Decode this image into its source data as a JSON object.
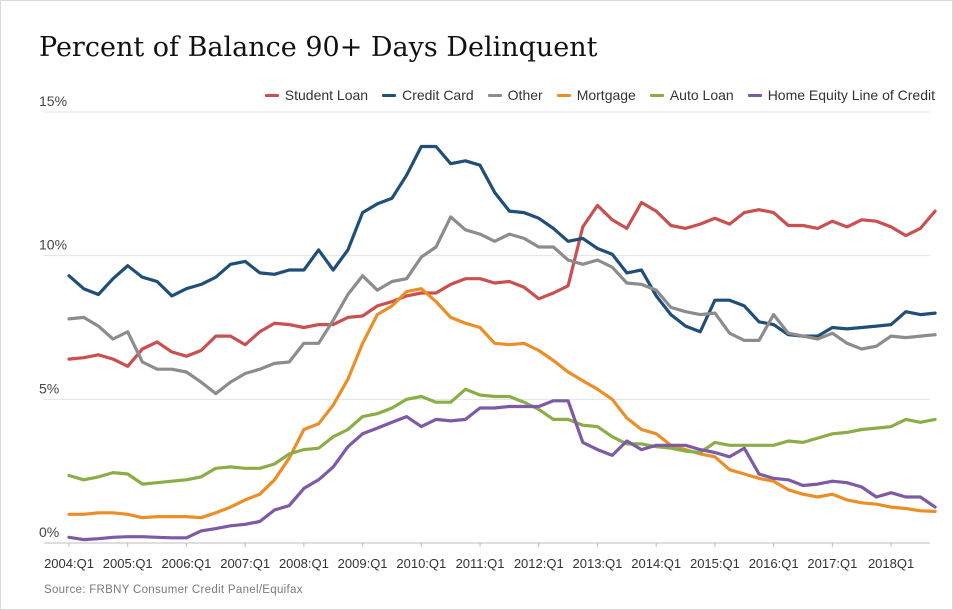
{
  "title": "Percent of Balance 90+ Days Delinquent",
  "source": "Source: FRBNY Consumer Credit Panel/Equifax",
  "chart_data": {
    "type": "line",
    "title": "Percent of Balance 90+ Days Delinquent",
    "ylim": [
      0,
      15
    ],
    "yticks": [
      0,
      5,
      10,
      15
    ],
    "ytick_labels": [
      "0%",
      "5%",
      "10%",
      "15%"
    ],
    "x_start": "2004:Q1",
    "x_tick_labels": [
      "2004:Q1",
      "2005:Q1",
      "2006:Q1",
      "2007:Q1",
      "2008:Q1",
      "2009:Q1",
      "2010:Q1",
      "2011:Q1",
      "2012:Q1",
      "2013:Q1",
      "2014:Q1",
      "2015:Q1",
      "2016:Q1",
      "2017:Q1",
      "2018Q1"
    ],
    "grid": true,
    "legend_position": "top-right",
    "series": [
      {
        "name": "Student Loan",
        "color": "#c9504f",
        "values": [
          6.4,
          6.45,
          6.55,
          6.4,
          6.15,
          6.75,
          7.0,
          6.65,
          6.5,
          6.7,
          7.2,
          7.2,
          6.9,
          7.35,
          7.65,
          7.6,
          7.5,
          7.6,
          7.6,
          7.85,
          7.9,
          8.25,
          8.4,
          8.6,
          8.7,
          8.7,
          9.0,
          9.2,
          9.2,
          9.05,
          9.1,
          8.9,
          8.5,
          8.7,
          8.95,
          11.0,
          11.75,
          11.25,
          10.95,
          11.85,
          11.55,
          11.05,
          10.95,
          11.1,
          11.3,
          11.1,
          11.5,
          11.6,
          11.5,
          11.05,
          11.05,
          10.95,
          11.2,
          11.0,
          11.25,
          11.2,
          11.0,
          10.7,
          10.95,
          11.55
        ]
      },
      {
        "name": "Credit Card",
        "color": "#1f4e79",
        "values": [
          9.3,
          8.85,
          8.65,
          9.2,
          9.65,
          9.25,
          9.1,
          8.6,
          8.85,
          9.0,
          9.25,
          9.7,
          9.8,
          9.4,
          9.35,
          9.5,
          9.5,
          10.2,
          9.5,
          10.2,
          11.5,
          11.8,
          12.0,
          12.8,
          13.8,
          13.8,
          13.2,
          13.3,
          13.15,
          12.2,
          11.55,
          11.5,
          11.3,
          10.95,
          10.5,
          10.6,
          10.25,
          10.05,
          9.4,
          9.5,
          8.6,
          7.95,
          7.55,
          7.35,
          8.45,
          8.45,
          8.25,
          7.7,
          7.6,
          7.25,
          7.2,
          7.2,
          7.5,
          7.45,
          7.5,
          7.55,
          7.6,
          8.05,
          7.95,
          8.0
        ]
      },
      {
        "name": "Other",
        "color": "#8c8c8c",
        "values": [
          7.8,
          7.85,
          7.55,
          7.1,
          7.35,
          6.3,
          6.05,
          6.05,
          5.95,
          5.6,
          5.2,
          5.6,
          5.9,
          6.05,
          6.25,
          6.3,
          6.95,
          6.95,
          7.75,
          8.65,
          9.3,
          8.8,
          9.1,
          9.2,
          9.95,
          10.3,
          11.35,
          10.9,
          10.75,
          10.5,
          10.75,
          10.6,
          10.3,
          10.3,
          9.85,
          9.7,
          9.85,
          9.6,
          9.05,
          9.0,
          8.8,
          8.2,
          8.05,
          7.95,
          8.0,
          7.3,
          7.05,
          7.05,
          7.95,
          7.3,
          7.2,
          7.1,
          7.3,
          6.95,
          6.75,
          6.85,
          7.2,
          7.15,
          7.2,
          7.25
        ]
      },
      {
        "name": "Mortgage",
        "color": "#ec8d26",
        "values": [
          1.0,
          1.0,
          1.05,
          1.05,
          1.0,
          0.88,
          0.92,
          0.92,
          0.92,
          0.88,
          1.05,
          1.25,
          1.5,
          1.7,
          2.2,
          2.95,
          3.95,
          4.15,
          4.8,
          5.7,
          6.95,
          7.95,
          8.25,
          8.75,
          8.85,
          8.4,
          7.85,
          7.65,
          7.5,
          6.95,
          6.9,
          6.95,
          6.7,
          6.35,
          5.95,
          5.65,
          5.35,
          5.0,
          4.35,
          3.95,
          3.8,
          3.4,
          3.25,
          3.1,
          3.0,
          2.55,
          2.4,
          2.25,
          2.15,
          1.85,
          1.7,
          1.6,
          1.7,
          1.5,
          1.4,
          1.35,
          1.25,
          1.2,
          1.12,
          1.1
        ]
      },
      {
        "name": "Auto Loan",
        "color": "#8aae45",
        "values": [
          2.35,
          2.2,
          2.3,
          2.45,
          2.4,
          2.05,
          2.1,
          2.15,
          2.2,
          2.3,
          2.6,
          2.65,
          2.6,
          2.6,
          2.75,
          3.1,
          3.25,
          3.3,
          3.7,
          3.95,
          4.4,
          4.5,
          4.7,
          5.0,
          5.1,
          4.9,
          4.9,
          5.35,
          5.15,
          5.1,
          5.1,
          4.9,
          4.65,
          4.3,
          4.3,
          4.1,
          4.05,
          3.7,
          3.45,
          3.45,
          3.35,
          3.3,
          3.2,
          3.15,
          3.5,
          3.4,
          3.4,
          3.4,
          3.4,
          3.55,
          3.5,
          3.65,
          3.8,
          3.85,
          3.95,
          4.0,
          4.05,
          4.3,
          4.2,
          4.3
        ]
      },
      {
        "name": "Home Equity Line of Credit",
        "color": "#7c5aa6",
        "values": [
          0.2,
          0.12,
          0.15,
          0.2,
          0.22,
          0.22,
          0.2,
          0.18,
          0.18,
          0.42,
          0.5,
          0.6,
          0.65,
          0.75,
          1.15,
          1.3,
          1.9,
          2.2,
          2.65,
          3.35,
          3.8,
          4.0,
          4.2,
          4.4,
          4.05,
          4.3,
          4.25,
          4.3,
          4.7,
          4.7,
          4.75,
          4.75,
          4.75,
          4.95,
          4.95,
          3.5,
          3.25,
          3.05,
          3.55,
          3.25,
          3.4,
          3.4,
          3.4,
          3.25,
          3.15,
          3.0,
          3.3,
          2.4,
          2.25,
          2.2,
          2.0,
          2.05,
          2.15,
          2.1,
          1.95,
          1.6,
          1.75,
          1.6,
          1.6,
          1.25
        ]
      }
    ]
  }
}
